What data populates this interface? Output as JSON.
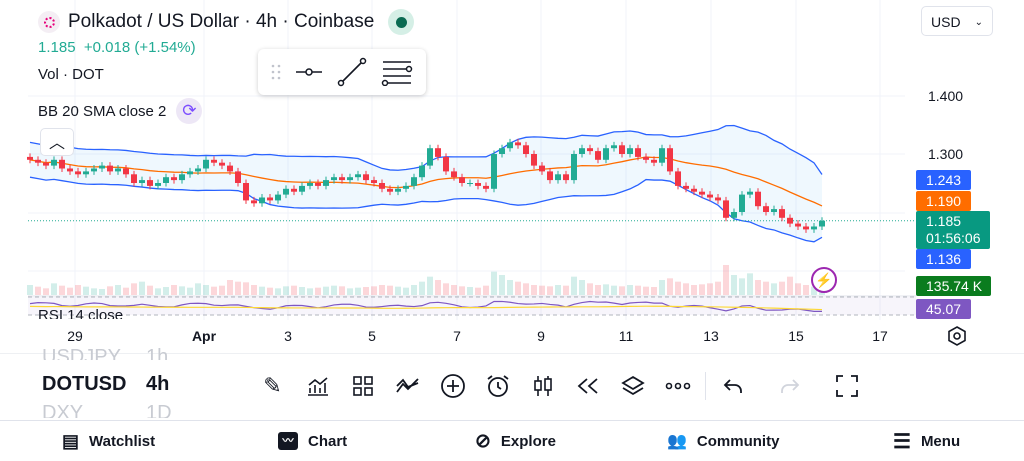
{
  "header": {
    "title": "Polkadot / US Dollar · 4h · Coinbase",
    "price": "1.185",
    "change": "+0.018 (+1.54%)",
    "currency": "USD"
  },
  "legend": {
    "volume": "Vol · DOT",
    "bb": "BB 20 SMA close 2",
    "rsi": "RSI 14 close"
  },
  "price_axis": [
    "1.400",
    "1.300"
  ],
  "tags": {
    "bb_upper": "1.243",
    "sma": "1.190",
    "last": "1.185",
    "countdown": "01:56:06",
    "bb_lower": "1.136",
    "volume": "135.74 K",
    "rsi": "45.07"
  },
  "time_axis": [
    "29",
    "Apr",
    "3",
    "5",
    "7",
    "9",
    "11",
    "13",
    "15",
    "17"
  ],
  "colors": {
    "up": "#22ab94",
    "down": "#f23645",
    "band": "#2962ff",
    "sma": "#ff6d00",
    "rsi": "#7e57c2"
  },
  "chart_data": {
    "type": "candlestick",
    "interval": "4h",
    "closes": [
      1.29,
      1.285,
      1.28,
      1.29,
      1.275,
      1.27,
      1.265,
      1.27,
      1.275,
      1.28,
      1.27,
      1.275,
      1.265,
      1.25,
      1.255,
      1.245,
      1.25,
      1.26,
      1.255,
      1.265,
      1.27,
      1.275,
      1.29,
      1.285,
      1.28,
      1.27,
      1.25,
      1.22,
      1.215,
      1.225,
      1.22,
      1.23,
      1.24,
      1.235,
      1.245,
      1.25,
      1.245,
      1.255,
      1.26,
      1.255,
      1.26,
      1.265,
      1.255,
      1.25,
      1.24,
      1.235,
      1.24,
      1.245,
      1.26,
      1.28,
      1.31,
      1.295,
      1.27,
      1.26,
      1.25,
      1.25,
      1.245,
      1.24,
      1.3,
      1.31,
      1.32,
      1.315,
      1.3,
      1.28,
      1.27,
      1.255,
      1.265,
      1.255,
      1.3,
      1.31,
      1.305,
      1.29,
      1.31,
      1.315,
      1.3,
      1.31,
      1.295,
      1.29,
      1.285,
      1.31,
      1.27,
      1.245,
      1.24,
      1.235,
      1.23,
      1.225,
      1.22,
      1.19,
      1.2,
      1.23,
      1.235,
      1.21,
      1.2,
      1.205,
      1.19,
      1.18,
      1.175,
      1.17,
      1.175,
      1.185
    ],
    "volumes": [
      30,
      25,
      20,
      35,
      28,
      22,
      30,
      25,
      20,
      18,
      26,
      30,
      22,
      35,
      40,
      28,
      20,
      24,
      30,
      26,
      22,
      35,
      30,
      25,
      28,
      45,
      40,
      38,
      30,
      25,
      22,
      20,
      26,
      28,
      24,
      20,
      22,
      25,
      28,
      26,
      20,
      22,
      24,
      26,
      30,
      28,
      25,
      22,
      30,
      40,
      55,
      45,
      35,
      30,
      26,
      24,
      22,
      28,
      70,
      60,
      45,
      40,
      35,
      30,
      28,
      26,
      30,
      28,
      55,
      45,
      35,
      30,
      32,
      28,
      26,
      30,
      28,
      25,
      24,
      45,
      50,
      40,
      35,
      30,
      32,
      35,
      40,
      90,
      60,
      50,
      65,
      45,
      40,
      35,
      40,
      55,
      35,
      30,
      25,
      28
    ]
  },
  "toolbar": {
    "symbols": [
      "USDJPY",
      "DOTUSD",
      "DXY"
    ],
    "intervals": [
      "1h",
      "4h",
      "1D"
    ]
  },
  "nav": [
    "Watchlist",
    "Chart",
    "Explore",
    "Community",
    "Menu"
  ]
}
